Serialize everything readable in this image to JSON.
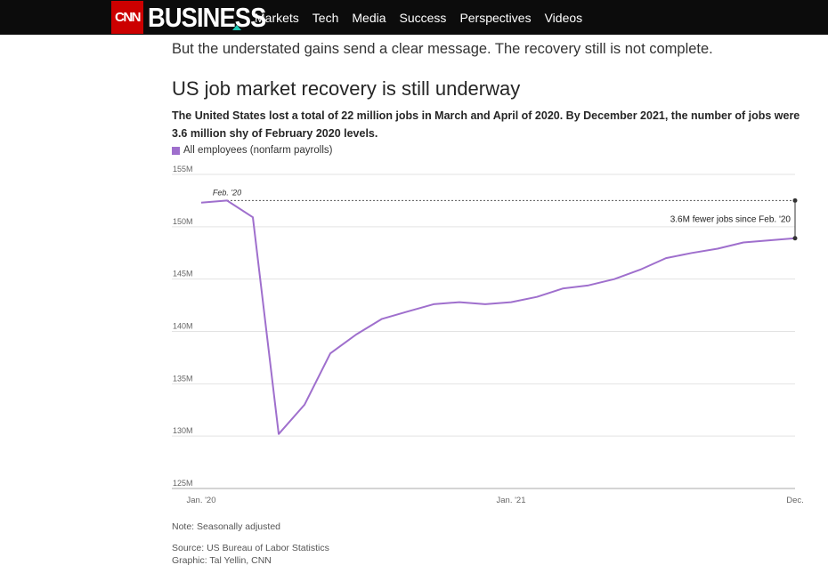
{
  "header": {
    "logo_text": "CNN",
    "brand_text": "BUSINESS",
    "nav": [
      "Markets",
      "Tech",
      "Media",
      "Success",
      "Perspectives",
      "Videos"
    ],
    "colors": {
      "bar": "#0c0c0c",
      "logo": "#cc0000",
      "accent": "#1fc8b4"
    }
  },
  "article": {
    "lead": "But the understated gains send a clear message. The recovery still is not complete."
  },
  "figure": {
    "note": "Note: Seasonally adjusted",
    "source": "Source: US Bureau of Labor Statistics",
    "graphic": "Graphic: Tal Yellin, CNN"
  },
  "chart_data": {
    "type": "line",
    "title": "US job market recovery is still underway",
    "subtitle": "The United States lost a total of 22 million jobs in March and April of 2020. By December 2021, the number of jobs were 3.6 million shy of February 2020 levels.",
    "legend_position": "top-left",
    "grid": true,
    "ylim": [
      125,
      155
    ],
    "y_unit": "M",
    "y_ticks": [
      "155M",
      "150M",
      "145M",
      "140M",
      "135M",
      "130M",
      "125M"
    ],
    "x_ticks": [
      "Jan. '20",
      "Jan. '21",
      "Dec."
    ],
    "series": [
      {
        "name": "All employees (nonfarm payrolls)",
        "color": "#9f6fcd",
        "x": [
          "2020-01",
          "2020-02",
          "2020-03",
          "2020-04",
          "2020-05",
          "2020-06",
          "2020-07",
          "2020-08",
          "2020-09",
          "2020-10",
          "2020-11",
          "2020-12",
          "2021-01",
          "2021-02",
          "2021-03",
          "2021-04",
          "2021-05",
          "2021-06",
          "2021-07",
          "2021-08",
          "2021-09",
          "2021-10",
          "2021-11",
          "2021-12"
        ],
        "values": [
          152.3,
          152.5,
          150.9,
          130.2,
          133.0,
          137.9,
          139.7,
          141.2,
          141.9,
          142.6,
          142.8,
          142.6,
          142.8,
          143.3,
          144.1,
          144.4,
          145.0,
          145.9,
          147.0,
          147.5,
          147.9,
          148.5,
          148.7,
          148.9
        ]
      }
    ],
    "annotations": [
      {
        "label": "Feb. '20",
        "x": "2020-02",
        "y": 152.5
      },
      {
        "label": "3.6M fewer jobs since Feb. '20",
        "x": "2021-12",
        "from": 152.5,
        "to": 148.9
      }
    ]
  }
}
